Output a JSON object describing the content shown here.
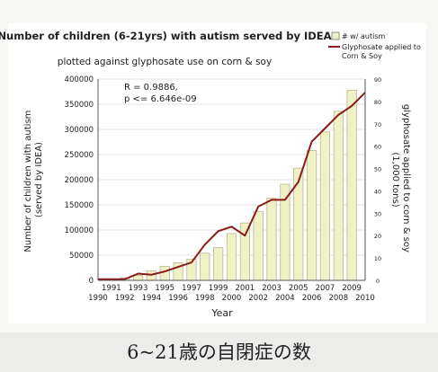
{
  "chart_data": {
    "type": "bar",
    "title": "Number of children (6-21yrs) with autism served by IDEA",
    "subtitle": "plotted against glyphosate use on corn & soy",
    "annotation": [
      "R = 0.9886,",
      "p <= 6.646e-09"
    ],
    "xlabel": "Year",
    "ylabel_left": [
      "Number of children with autism",
      "(served by IDEA)"
    ],
    "ylabel_right": [
      "glyphosate applied to corn & soy",
      "(1,000 tons)"
    ],
    "x_ticks_row1": [
      "1991",
      "1993",
      "1995",
      "1997",
      "1999",
      "2001",
      "2003",
      "2005",
      "2007",
      "2009"
    ],
    "x_ticks_row2": [
      "1990",
      "1992",
      "1994",
      "1996",
      "1998",
      "2000",
      "2002",
      "2004",
      "2006",
      "2008",
      "2010"
    ],
    "xlim": [
      1990,
      2010
    ],
    "y_left_ticks": [
      "0",
      "50000",
      "100000",
      "150000",
      "200000",
      "250000",
      "300000",
      "350000",
      "400000"
    ],
    "ylim_left": [
      0,
      400000
    ],
    "y_right_ticks": [
      "0",
      "10",
      "20",
      "30",
      "40",
      "50",
      "60",
      "70",
      "80",
      "90"
    ],
    "ylim_right": [
      0,
      90
    ],
    "legend": {
      "position": "top-right",
      "items": [
        {
          "label": "# w/ autism",
          "kind": "bar"
        },
        {
          "label": "Glyphosate applied to Corn & Soy",
          "kind": "line"
        }
      ]
    },
    "series": [
      {
        "name": "# w/ autism",
        "kind": "bar",
        "color": "#f1f1c8",
        "x": [
          1992,
          1993,
          1994,
          1995,
          1996,
          1997,
          1998,
          1999,
          2000,
          2001,
          2002,
          2003,
          2004,
          2005,
          2006,
          2007,
          2008,
          2009
        ],
        "values": [
          5000,
          10000,
          19000,
          28000,
          35000,
          42000,
          54000,
          65000,
          93000,
          114000,
          137000,
          163000,
          191000,
          223000,
          258000,
          295000,
          336000,
          378000
        ]
      },
      {
        "name": "Glyphosate applied to Corn & Soy",
        "kind": "line",
        "color": "#8b1a1a",
        "x": [
          1990,
          1991,
          1992,
          1993,
          1994,
          1995,
          1996,
          1997,
          1998,
          1999,
          2000,
          2001,
          2002,
          2003,
          2004,
          2005,
          2006,
          2007,
          2008,
          2009,
          2010
        ],
        "values": [
          0.5,
          0.5,
          0.5,
          3,
          2.5,
          4,
          6,
          8,
          16,
          22,
          24,
          20,
          33,
          36,
          36,
          44,
          62,
          68,
          74,
          78,
          84
        ]
      }
    ]
  },
  "caption": "6~21歳の自閉症の数",
  "colors": {
    "bar_fill": "#f1f1c8",
    "bar_stroke": "#b8b890",
    "line": "#8b1a1a",
    "grid": "#d9d9d9"
  }
}
